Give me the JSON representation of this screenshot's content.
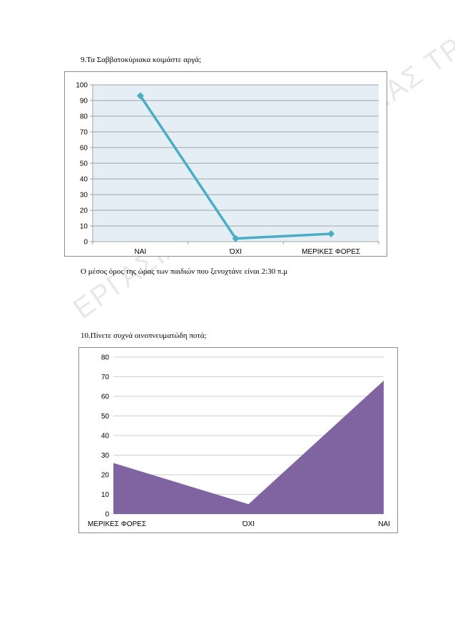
{
  "watermark": "ΕΡΓΑΣΙΑ ΤΗΣ ΣΧΟΛΗΣ ΑΓΙΑΣ ΤΡ",
  "question9": "9.Τα Σαββατοκύριακα κοιμάστε αργά;",
  "avg_sentence": "Ο μέσος όρος της ώρας των παιδιών που ξενυχτάνε είναι 2:30 π.μ",
  "question10": "10.Πίνετε συχνά οινοπνευματώδη ποτά;",
  "chart_data": [
    {
      "type": "line",
      "categories": [
        "ΝΑΙ",
        "ΌΧΙ",
        "ΜΕΡΙΚΕΣ ΦΟΡΕΣ"
      ],
      "values": [
        93,
        2,
        5
      ],
      "ylim": [
        0,
        100
      ],
      "yticks": [
        "0",
        "10",
        "20",
        "30",
        "40",
        "50",
        "60",
        "70",
        "80",
        "90",
        "100"
      ],
      "grid": true,
      "colors": {
        "line": "#4bacc6",
        "plot_bg": "#e4eef4",
        "grid": "#8c8c8c"
      }
    },
    {
      "type": "area",
      "categories": [
        "ΜΕΡΙΚΕΣ ΦΟΡΕΣ",
        "ΌΧΙ",
        "ΝΑΙ"
      ],
      "values": [
        26,
        5,
        68
      ],
      "ylim": [
        0,
        80
      ],
      "yticks": [
        "0",
        "10",
        "20",
        "30",
        "40",
        "50",
        "60",
        "70",
        "80"
      ],
      "grid": true,
      "colors": {
        "fill": "#8064a2",
        "grid": "#bfbfbf"
      }
    }
  ]
}
